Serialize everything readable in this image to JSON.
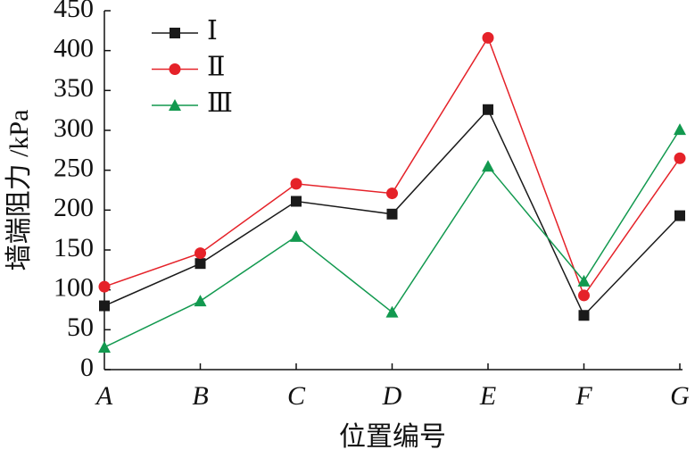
{
  "chart_data": {
    "type": "line",
    "xlabel": "位置编号",
    "ylabel": "墙端阻力 /kPa",
    "categories": [
      "A",
      "B",
      "C",
      "D",
      "E",
      "F",
      "G"
    ],
    "series": [
      {
        "name": "Ⅰ",
        "color": "#1a1a1a",
        "marker": "square",
        "values": [
          80,
          133,
          211,
          195,
          326,
          68,
          193
        ]
      },
      {
        "name": "Ⅱ",
        "color": "#e52229",
        "marker": "circle",
        "values": [
          104,
          146,
          233,
          221,
          416,
          93,
          265
        ]
      },
      {
        "name": "Ⅲ",
        "color": "#12994f",
        "marker": "triangle",
        "values": [
          28,
          86,
          167,
          72,
          255,
          111,
          301
        ]
      }
    ],
    "ylim": [
      0,
      450
    ],
    "yticks": [
      0,
      50,
      100,
      150,
      200,
      250,
      300,
      350,
      400,
      450
    ],
    "legend": "upper left"
  }
}
